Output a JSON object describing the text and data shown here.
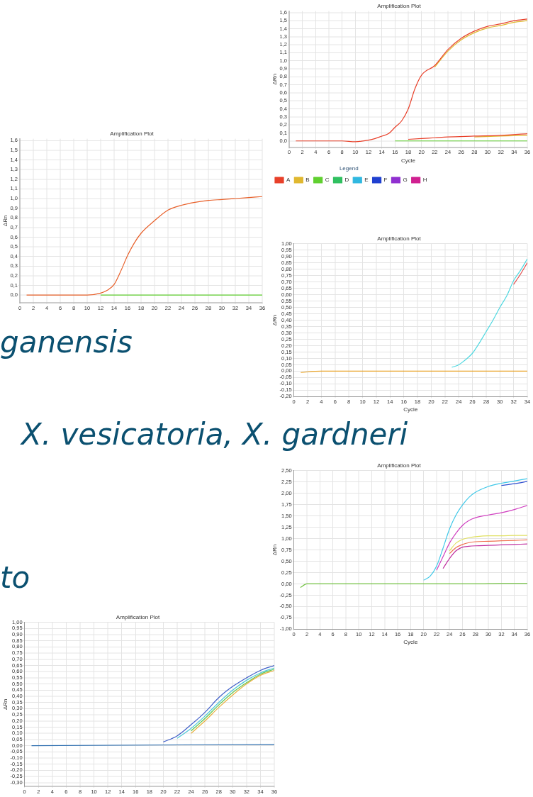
{
  "chart_data": [
    {
      "type": "line",
      "title": "Amplification Plot",
      "xlabel": "Cycle",
      "ylabel": "ΔRn",
      "legend": "bottom",
      "legend_title": "Legend",
      "grid": true,
      "xlim": [
        0,
        36
      ],
      "xticks": [
        0,
        2,
        4,
        6,
        8,
        10,
        12,
        14,
        16,
        18,
        20,
        22,
        24,
        26,
        28,
        30,
        32,
        34,
        36
      ],
      "ylim": [
        -0.08,
        1.62
      ],
      "yticks": [
        {
          "value": 0,
          "label": "0,0"
        },
        {
          "value": 0.1,
          "label": "0,1"
        },
        {
          "value": 0.2,
          "label": "0,2"
        },
        {
          "value": 0.3,
          "label": "0,3"
        },
        {
          "value": 0.4,
          "label": "0,4"
        },
        {
          "value": 0.5,
          "label": "0,5"
        },
        {
          "value": 0.6,
          "label": "0,6"
        },
        {
          "value": 0.7,
          "label": "0,7"
        },
        {
          "value": 0.8,
          "label": "0,8"
        },
        {
          "value": 0.9,
          "label": "0,9"
        },
        {
          "value": 1,
          "label": "1,0"
        },
        {
          "value": 1.1,
          "label": "1,1"
        },
        {
          "value": 1.2,
          "label": "1,2"
        },
        {
          "value": 1.3,
          "label": "1,3"
        },
        {
          "value": 1.4,
          "label": "1,4"
        },
        {
          "value": 1.5,
          "label": "1,5"
        },
        {
          "value": 1.6,
          "label": "1,6"
        }
      ],
      "series": [
        {
          "name": "A",
          "color": "#e8402a",
          "x": [
            1,
            4,
            8,
            10,
            12,
            13,
            14,
            15,
            16,
            17,
            18,
            19,
            20,
            22,
            24,
            26,
            28,
            30,
            32,
            34,
            36
          ],
          "values": [
            0,
            0,
            0,
            -0.01,
            0.01,
            0.03,
            0.06,
            0.09,
            0.17,
            0.25,
            0.4,
            0.65,
            0.82,
            0.94,
            1.14,
            1.28,
            1.37,
            1.43,
            1.46,
            1.5,
            1.52
          ]
        },
        {
          "name": "B",
          "color": "#e0b830",
          "x": [
            22,
            24,
            26,
            28,
            30,
            32,
            34,
            36
          ],
          "values": [
            0.92,
            1.12,
            1.26,
            1.35,
            1.41,
            1.44,
            1.48,
            1.5
          ]
        },
        {
          "name": "C",
          "color": "#60d030",
          "x": [
            16,
            36
          ],
          "values": [
            0,
            0
          ]
        },
        {
          "name": "D",
          "color": "#30c060"
        },
        {
          "name": "E",
          "color": "#30b8e0"
        },
        {
          "name": "F",
          "color": "#2040d0"
        },
        {
          "name": "G",
          "color": "#9030d0"
        },
        {
          "name": "H",
          "color": "#d02090"
        },
        {
          "color": "#e8402a",
          "x": [
            18,
            20,
            22,
            24,
            28,
            32,
            36
          ],
          "values": [
            0.02,
            0.03,
            0.04,
            0.05,
            0.06,
            0.07,
            0.09
          ]
        },
        {
          "color": "#e0b830",
          "x": [
            28,
            32,
            36
          ],
          "values": [
            0.05,
            0.06,
            0.07
          ]
        }
      ]
    },
    {
      "type": "line",
      "title": "Amplification Plot",
      "ylabel": "ΔRn",
      "annotations": [
        "ganensis"
      ],
      "grid": true,
      "xlim": [
        0,
        36
      ],
      "xticks": [
        0,
        2,
        4,
        6,
        8,
        10,
        12,
        14,
        16,
        18,
        20,
        22,
        24,
        26,
        28,
        30,
        32,
        34,
        36
      ],
      "ylim": [
        -0.08,
        1.62
      ],
      "yticks": [
        {
          "value": 0,
          "label": "0,0"
        },
        {
          "value": 0.1,
          "label": "0,1"
        },
        {
          "value": 0.2,
          "label": "0,2"
        },
        {
          "value": 0.3,
          "label": "0,3"
        },
        {
          "value": 0.4,
          "label": "0,4"
        },
        {
          "value": 0.5,
          "label": "0,5"
        },
        {
          "value": 0.6,
          "label": "0,6"
        },
        {
          "value": 0.7,
          "label": "0,7"
        },
        {
          "value": 0.8,
          "label": "0,8"
        },
        {
          "value": 0.9,
          "label": "0,9"
        },
        {
          "value": 1,
          "label": "1,0"
        },
        {
          "value": 1.1,
          "label": "1,1"
        },
        {
          "value": 1.2,
          "label": "1,2"
        },
        {
          "value": 1.3,
          "label": "1,3"
        },
        {
          "value": 1.4,
          "label": "1,4"
        },
        {
          "value": 1.5,
          "label": "1,5"
        },
        {
          "value": 1.6,
          "label": "1,6"
        }
      ],
      "series": [
        {
          "color": "#60d030",
          "x": [
            12,
            36
          ],
          "values": [
            0,
            0
          ]
        },
        {
          "color": "#e8602a",
          "x": [
            1,
            4,
            8,
            10,
            12,
            13,
            14,
            15,
            16,
            17,
            18,
            20,
            22,
            24,
            26,
            28,
            30,
            32,
            34,
            36
          ],
          "values": [
            0,
            0,
            0,
            0,
            0.02,
            0.05,
            0.11,
            0.25,
            0.41,
            0.54,
            0.64,
            0.77,
            0.88,
            0.93,
            0.96,
            0.98,
            0.99,
            1.0,
            1.01,
            1.02
          ]
        }
      ]
    },
    {
      "type": "line",
      "title": "Amplification Plot",
      "xlabel": "Cycle",
      "ylabel": "ΔRn",
      "annotations": [
        "X. vesicatoria, X. gardneri"
      ],
      "grid": true,
      "xlim": [
        0,
        34
      ],
      "xticks": [
        0,
        2,
        4,
        6,
        8,
        10,
        12,
        14,
        16,
        18,
        20,
        22,
        24,
        26,
        28,
        30,
        32,
        34
      ],
      "ylim": [
        -0.2,
        1
      ],
      "yticks": [
        {
          "value": -0.2,
          "label": "-0,20"
        },
        {
          "value": -0.15,
          "label": "-0,15"
        },
        {
          "value": -0.1,
          "label": "-0,10"
        },
        {
          "value": -0.05,
          "label": "-0,05"
        },
        {
          "value": 0,
          "label": "0,00"
        },
        {
          "value": 0.05,
          "label": "0,05"
        },
        {
          "value": 0.1,
          "label": "0,10"
        },
        {
          "value": 0.15,
          "label": "0,15"
        },
        {
          "value": 0.2,
          "label": "0,20"
        },
        {
          "value": 0.25,
          "label": "0,25"
        },
        {
          "value": 0.3,
          "label": "0,30"
        },
        {
          "value": 0.35,
          "label": "0,35"
        },
        {
          "value": 0.4,
          "label": "0,40"
        },
        {
          "value": 0.45,
          "label": "0,45"
        },
        {
          "value": 0.5,
          "label": "0,50"
        },
        {
          "value": 0.55,
          "label": "0,55"
        },
        {
          "value": 0.6,
          "label": "0,60"
        },
        {
          "value": 0.65,
          "label": "0,65"
        },
        {
          "value": 0.7,
          "label": "0,70"
        },
        {
          "value": 0.75,
          "label": "0,75"
        },
        {
          "value": 0.8,
          "label": "0,80"
        },
        {
          "value": 0.85,
          "label": "0,85"
        },
        {
          "value": 0.9,
          "label": "0,90"
        },
        {
          "value": 0.95,
          "label": "0,95"
        },
        {
          "value": 1,
          "label": "1,00"
        }
      ],
      "series": [
        {
          "color": "#e8a020",
          "x": [
            1,
            4,
            20,
            34
          ],
          "values": [
            -0.01,
            0,
            0,
            0
          ]
        },
        {
          "color": "#50d8e0",
          "x": [
            23,
            24,
            25,
            26,
            27,
            28,
            29,
            30,
            31,
            32,
            33,
            34
          ],
          "values": [
            0.03,
            0.05,
            0.09,
            0.14,
            0.22,
            0.31,
            0.4,
            0.5,
            0.59,
            0.71,
            0.79,
            0.88
          ]
        },
        {
          "color": "#e05050",
          "x": [
            32,
            33,
            34
          ],
          "values": [
            0.68,
            0.76,
            0.85
          ]
        }
      ]
    },
    {
      "type": "line",
      "title": "Amplification Plot",
      "xlabel": "Cycle",
      "ylabel": "ΔRn",
      "grid": true,
      "xlim": [
        0,
        36
      ],
      "xticks": [
        0,
        2,
        4,
        6,
        8,
        10,
        12,
        14,
        16,
        18,
        20,
        22,
        24,
        26,
        28,
        30,
        32,
        34,
        36
      ],
      "ylim": [
        -1,
        2.5
      ],
      "yticks": [
        {
          "value": -1,
          "label": "-1,00"
        },
        {
          "value": -0.75,
          "label": "-0,75"
        },
        {
          "value": -0.5,
          "label": "-0,50"
        },
        {
          "value": -0.25,
          "label": "-0,25"
        },
        {
          "value": 0,
          "label": "0,00"
        },
        {
          "value": 0.25,
          "label": "0,25"
        },
        {
          "value": 0.5,
          "label": "0,50"
        },
        {
          "value": 0.75,
          "label": "0,75"
        },
        {
          "value": 1,
          "label": "1,00"
        },
        {
          "value": 1.25,
          "label": "1,25"
        },
        {
          "value": 1.5,
          "label": "1,50"
        },
        {
          "value": 1.75,
          "label": "1,75"
        },
        {
          "value": 2,
          "label": "2,00"
        },
        {
          "value": 2.25,
          "label": "2,25"
        },
        {
          "value": 2.5,
          "label": "2,50"
        }
      ],
      "series": [
        {
          "color": "#70c040",
          "x": [
            1,
            2,
            4,
            10,
            18,
            20,
            24,
            28,
            32,
            36
          ],
          "values": [
            -0.08,
            0,
            0,
            0,
            0,
            0,
            0,
            0,
            0.01,
            0.01
          ]
        },
        {
          "color": "#c030a0",
          "x": [
            23,
            24,
            25,
            26,
            27,
            28,
            30,
            32,
            34,
            36
          ],
          "values": [
            0.34,
            0.56,
            0.73,
            0.81,
            0.83,
            0.84,
            0.85,
            0.86,
            0.87,
            0.88
          ]
        },
        {
          "color": "#f07050",
          "x": [
            24,
            25,
            26,
            27,
            28,
            30,
            32,
            34,
            36
          ],
          "values": [
            0.67,
            0.8,
            0.87,
            0.91,
            0.93,
            0.94,
            0.95,
            0.96,
            0.97
          ]
        },
        {
          "color": "#e0e060",
          "x": [
            24,
            25,
            26,
            27,
            28,
            30,
            32,
            34,
            36
          ],
          "values": [
            0.73,
            0.9,
            0.98,
            1.02,
            1.04,
            1.06,
            1.06,
            1.07,
            1.07
          ]
        },
        {
          "color": "#d040c0",
          "x": [
            22,
            23,
            24,
            25,
            26,
            27,
            28,
            30,
            32,
            34,
            36
          ],
          "values": [
            0.3,
            0.6,
            0.9,
            1.12,
            1.29,
            1.4,
            1.46,
            1.52,
            1.57,
            1.64,
            1.73
          ]
        },
        {
          "color": "#3050d0",
          "x": [
            32,
            34,
            36
          ],
          "values": [
            2.17,
            2.21,
            2.26
          ]
        },
        {
          "color": "#40c8e8",
          "x": [
            20,
            21,
            22,
            23,
            24,
            25,
            26,
            27,
            28,
            30,
            32,
            34,
            36
          ],
          "values": [
            0.08,
            0.17,
            0.39,
            0.79,
            1.21,
            1.52,
            1.74,
            1.91,
            2.02,
            2.15,
            2.22,
            2.27,
            2.32
          ]
        }
      ]
    },
    {
      "type": "line",
      "title": "Amplification Plot",
      "ylabel": "ΔRn",
      "annotations": [
        "to"
      ],
      "grid": true,
      "xlim": [
        0,
        36
      ],
      "xticks": [
        0,
        2,
        4,
        6,
        8,
        10,
        12,
        14,
        16,
        18,
        20,
        22,
        24,
        26,
        28,
        30,
        32,
        34,
        36
      ],
      "ylim": [
        -0.33,
        1
      ],
      "yticks": [
        {
          "value": -0.3,
          "label": "-0,30"
        },
        {
          "value": -0.25,
          "label": "-0,25"
        },
        {
          "value": -0.2,
          "label": "-0,20"
        },
        {
          "value": -0.15,
          "label": "-0,15"
        },
        {
          "value": -0.1,
          "label": "-0,10"
        },
        {
          "value": -0.05,
          "label": "-0,05"
        },
        {
          "value": 0,
          "label": "0,00"
        },
        {
          "value": 0.05,
          "label": "0,05"
        },
        {
          "value": 0.1,
          "label": "0,10"
        },
        {
          "value": 0.15,
          "label": "0,15"
        },
        {
          "value": 0.2,
          "label": "0,20"
        },
        {
          "value": 0.25,
          "label": "0,25"
        },
        {
          "value": 0.3,
          "label": "0,30"
        },
        {
          "value": 0.35,
          "label": "0,35"
        },
        {
          "value": 0.4,
          "label": "0,40"
        },
        {
          "value": 0.45,
          "label": "0,45"
        },
        {
          "value": 0.5,
          "label": "0,50"
        },
        {
          "value": 0.55,
          "label": "0,55"
        },
        {
          "value": 0.6,
          "label": "0,60"
        },
        {
          "value": 0.65,
          "label": "0,65"
        },
        {
          "value": 0.7,
          "label": "0,70"
        },
        {
          "value": 0.75,
          "label": "0,75"
        },
        {
          "value": 0.8,
          "label": "0,80"
        },
        {
          "value": 0.85,
          "label": "0,85"
        },
        {
          "value": 0.9,
          "label": "0,90"
        },
        {
          "value": 0.95,
          "label": "0,95"
        },
        {
          "value": 1,
          "label": "1,00"
        }
      ],
      "series": [
        {
          "color": "#3070b0",
          "x": [
            1,
            36
          ],
          "values": [
            0,
            0.01
          ]
        },
        {
          "color": "#e8b040",
          "x": [
            24,
            26,
            28,
            30,
            32,
            34,
            36
          ],
          "values": [
            0.1,
            0.2,
            0.31,
            0.41,
            0.5,
            0.57,
            0.61
          ]
        },
        {
          "color": "#60c850",
          "x": [
            24,
            26,
            28,
            30,
            32,
            34,
            36
          ],
          "values": [
            0.12,
            0.22,
            0.33,
            0.43,
            0.51,
            0.58,
            0.62
          ]
        },
        {
          "color": "#50c8d8",
          "x": [
            22,
            24,
            26,
            28,
            30,
            32,
            34,
            36
          ],
          "values": [
            0.06,
            0.14,
            0.24,
            0.35,
            0.45,
            0.53,
            0.59,
            0.63
          ]
        },
        {
          "color": "#4060c8",
          "x": [
            20,
            22,
            24,
            26,
            28,
            30,
            32,
            34,
            36
          ],
          "values": [
            0.03,
            0.08,
            0.17,
            0.27,
            0.39,
            0.48,
            0.55,
            0.61,
            0.65
          ]
        }
      ]
    }
  ]
}
